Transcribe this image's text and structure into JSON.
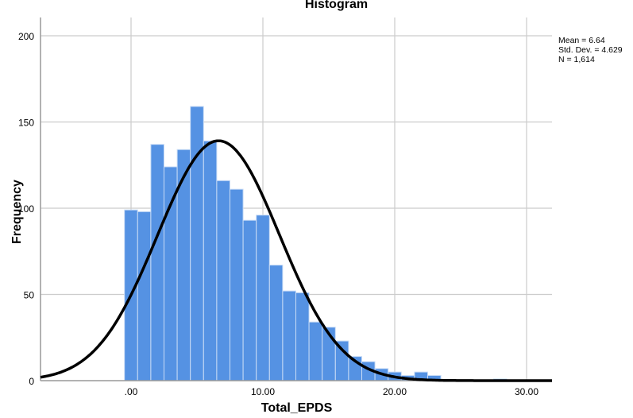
{
  "chart": {
    "title": "Histogram",
    "xlabel": "Total_EPDS",
    "ylabel": "Frequency",
    "stats": {
      "mean": "Mean = 6.64",
      "std_dev": "Std. Dev. = 4.629",
      "n": "N = 1,614"
    },
    "colors": {
      "bar": "#5592e3",
      "bar_edge": "#c9dcf6",
      "curve": "#000000",
      "grid": "#cccccc",
      "axis": "#999999"
    }
  },
  "chart_data": {
    "type": "bar",
    "title": "Histogram",
    "xlabel": "Total_EPDS",
    "ylabel": "Frequency",
    "xlim": [
      -7,
      32
    ],
    "ylim": [
      0,
      210
    ],
    "x_ticks": [
      ".00",
      "10.00",
      "20.00",
      "30.00"
    ],
    "x_tick_values": [
      0,
      10,
      20,
      30
    ],
    "y_ticks": [
      "0",
      "50",
      "100",
      "150",
      "200"
    ],
    "y_tick_values": [
      0,
      50,
      100,
      150,
      200
    ],
    "grid": true,
    "bin_width": 1,
    "bin_centers": [
      0,
      1,
      2,
      3,
      4,
      5,
      6,
      7,
      8,
      9,
      10,
      11,
      12,
      13,
      14,
      15,
      16,
      17,
      18,
      19,
      20,
      21,
      22,
      23,
      24,
      25,
      26,
      27,
      28,
      29,
      30
    ],
    "values": [
      99,
      98,
      137,
      124,
      134,
      159,
      139,
      116,
      111,
      93,
      96,
      67,
      52,
      51,
      34,
      31,
      23,
      14,
      11,
      7,
      5,
      3,
      5,
      3,
      0,
      0,
      0,
      0,
      1,
      0,
      0
    ],
    "normal_curve": {
      "mean": 6.64,
      "std_dev": 4.629,
      "n": 1614
    },
    "legend": [
      "Mean = 6.64",
      "Std. Dev. = 4.629",
      "N = 1,614"
    ],
    "legend_position": "right"
  }
}
